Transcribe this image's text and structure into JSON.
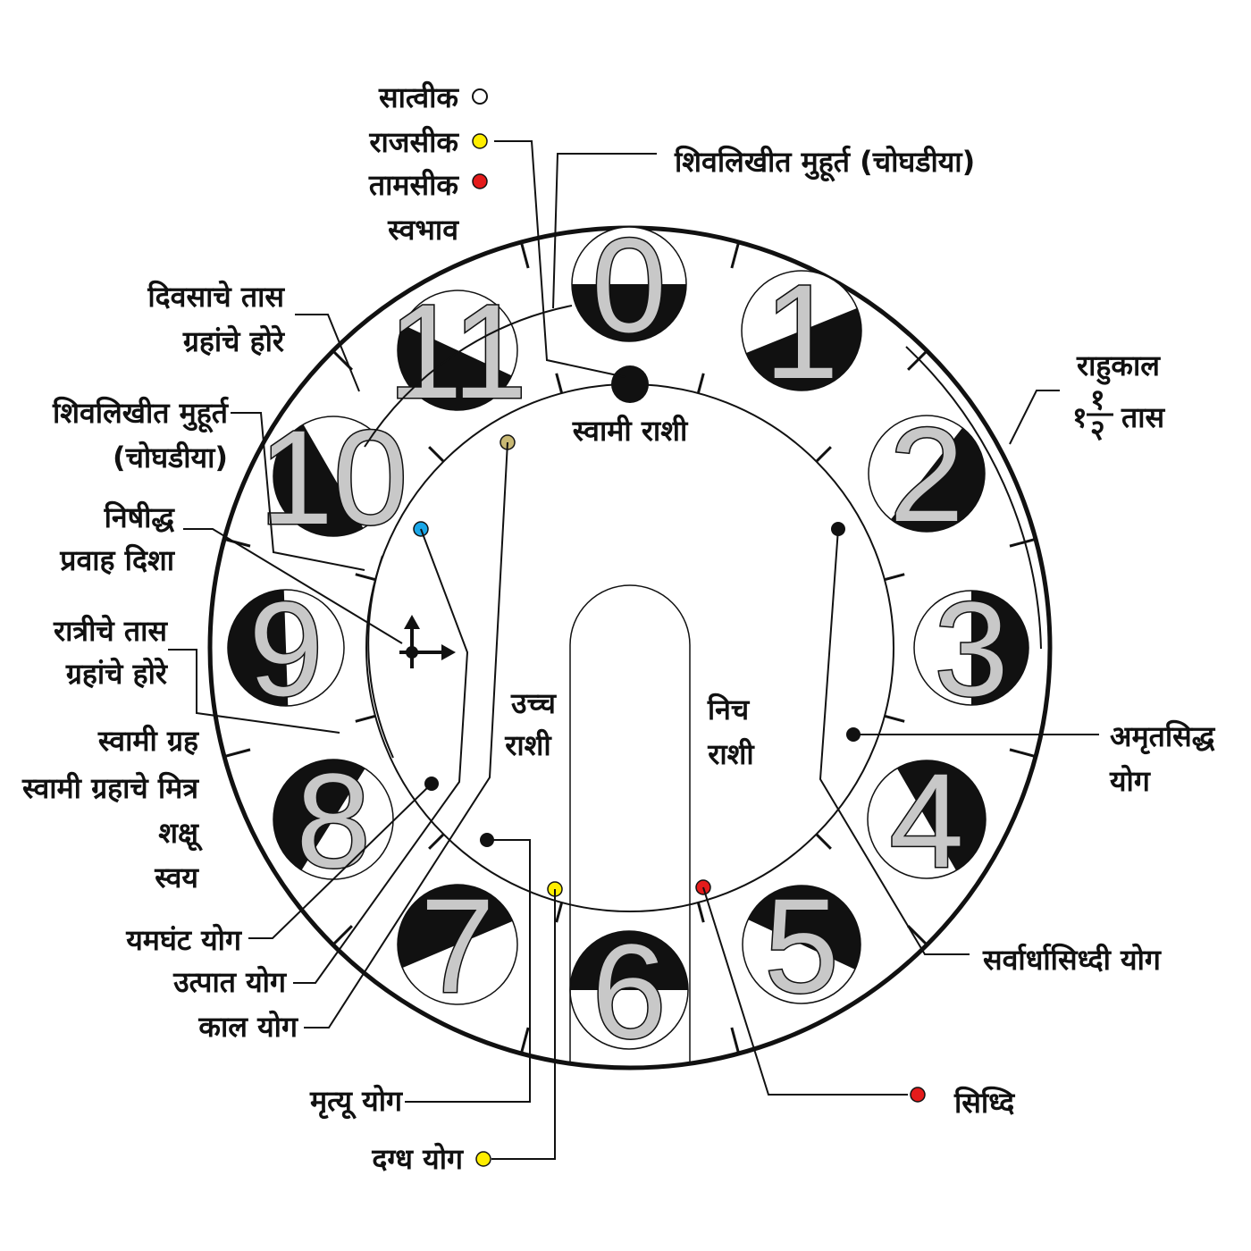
{
  "colors": {
    "ink": "#111111",
    "hour_numeral": "#c8c8c8",
    "sattvik": "#ffffff",
    "rajasik": "#ffee00",
    "tamasik": "#e41b1b",
    "olive_dot": "#c8b873",
    "blue_dot": "#1aa7e8",
    "red_dot": "#e41b1b",
    "yellow_dot": "#ffee00"
  },
  "legend": {
    "sattvik": "सात्वीक",
    "rajasik": "राजसीक",
    "tamasik": "तामसीक",
    "nature": "स्वभाव"
  },
  "labels": {
    "shivlikhit_top": "शिवलिखीत मुहूर्त (चोघडीया)",
    "day_hours_1": "दिवसाचे तास",
    "day_hours_2": "ग्रहांचे होरे",
    "shivlikhit_left_1": "शिवलिखीत मुहूर्त",
    "shivlikhit_left_2": "(चोघडीया)",
    "forbidden_1": "निषीद्ध",
    "forbidden_2": "प्रवाह दिशा",
    "night_hours_1": "रात्रीचे तास",
    "night_hours_2": "ग्रहांचे होरे",
    "lord_planet": "स्वामी ग्रह",
    "lord_friend": "स्वामी ग्रहाचे मित्र",
    "enemy": "शक्षू",
    "self": "स्वय",
    "yamaghant": "यमघंट योग",
    "utpat": "उत्पात योग",
    "kaal": "काल योग",
    "mrityu": "मृत्यू योग",
    "dagdha": "दग्ध योग",
    "siddhi": "सिध्दि",
    "sarvartha": "सर्वार्धासिध्दी योग",
    "amrut_1": "अमृतसिद्ध",
    "amrut_2": "योग",
    "rahukaal_1": "राहुकाल",
    "rahukaal_pre": "१",
    "rahukaal_num": "१",
    "rahukaal_den": "२",
    "rahukaal_post": "तास",
    "lord_sign": "स्वामी राशी",
    "exalt_1": "उच्च",
    "exalt_2": "राशी",
    "debil_1": "निच",
    "debil_2": "राशी"
  },
  "hours": [
    "0",
    "1",
    "2",
    "3",
    "4",
    "5",
    "6",
    "7",
    "8",
    "9",
    "10",
    "11"
  ]
}
